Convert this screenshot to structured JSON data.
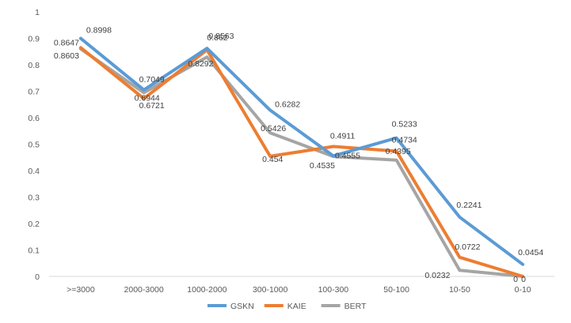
{
  "chart_data": {
    "type": "line",
    "title": "",
    "xlabel": "",
    "ylabel": "",
    "ylim": [
      0,
      1
    ],
    "yticks": [
      "0",
      "0.1",
      "0.2",
      "0.3",
      "0.4",
      "0.5",
      "0.6",
      "0.7",
      "0.8",
      "0.9",
      "1"
    ],
    "grid": false,
    "legend_position": "bottom",
    "categories": [
      ">=3000",
      "2000-3000",
      "1000-2000",
      "300-1000",
      "100-300",
      "50-100",
      "10-50",
      "0-10"
    ],
    "series": [
      {
        "name": "GSKN",
        "color": "#5B9BD5",
        "values": [
          0.8998,
          0.7049,
          0.862,
          0.6282,
          0.4555,
          0.5233,
          0.2241,
          0.0454
        ],
        "labels": [
          "0.8998",
          "0.7049",
          "0.862",
          "0.6282",
          "0.4555",
          "0.5233",
          "0.2241",
          "0.0454"
        ]
      },
      {
        "name": "KAIE",
        "color": "#ED7D31",
        "values": [
          0.8647,
          0.6721,
          0.8563,
          0.454,
          0.4911,
          0.4734,
          0.0722,
          0
        ],
        "labels": [
          "0.8647",
          "0.6721",
          "0.8563",
          "0.454",
          "0.4911",
          "0.4734",
          "0.0722",
          "0"
        ]
      },
      {
        "name": "BERT",
        "color": "#A5A5A5",
        "values": [
          0.8603,
          0.6944,
          0.8292,
          0.5426,
          0.4535,
          0.4395,
          0.0232,
          0
        ],
        "labels": [
          "0.8603",
          "0.6944",
          "0.8292",
          "0.5426",
          "0.4535",
          "0.4395",
          "0.0232",
          "0"
        ]
      }
    ]
  }
}
